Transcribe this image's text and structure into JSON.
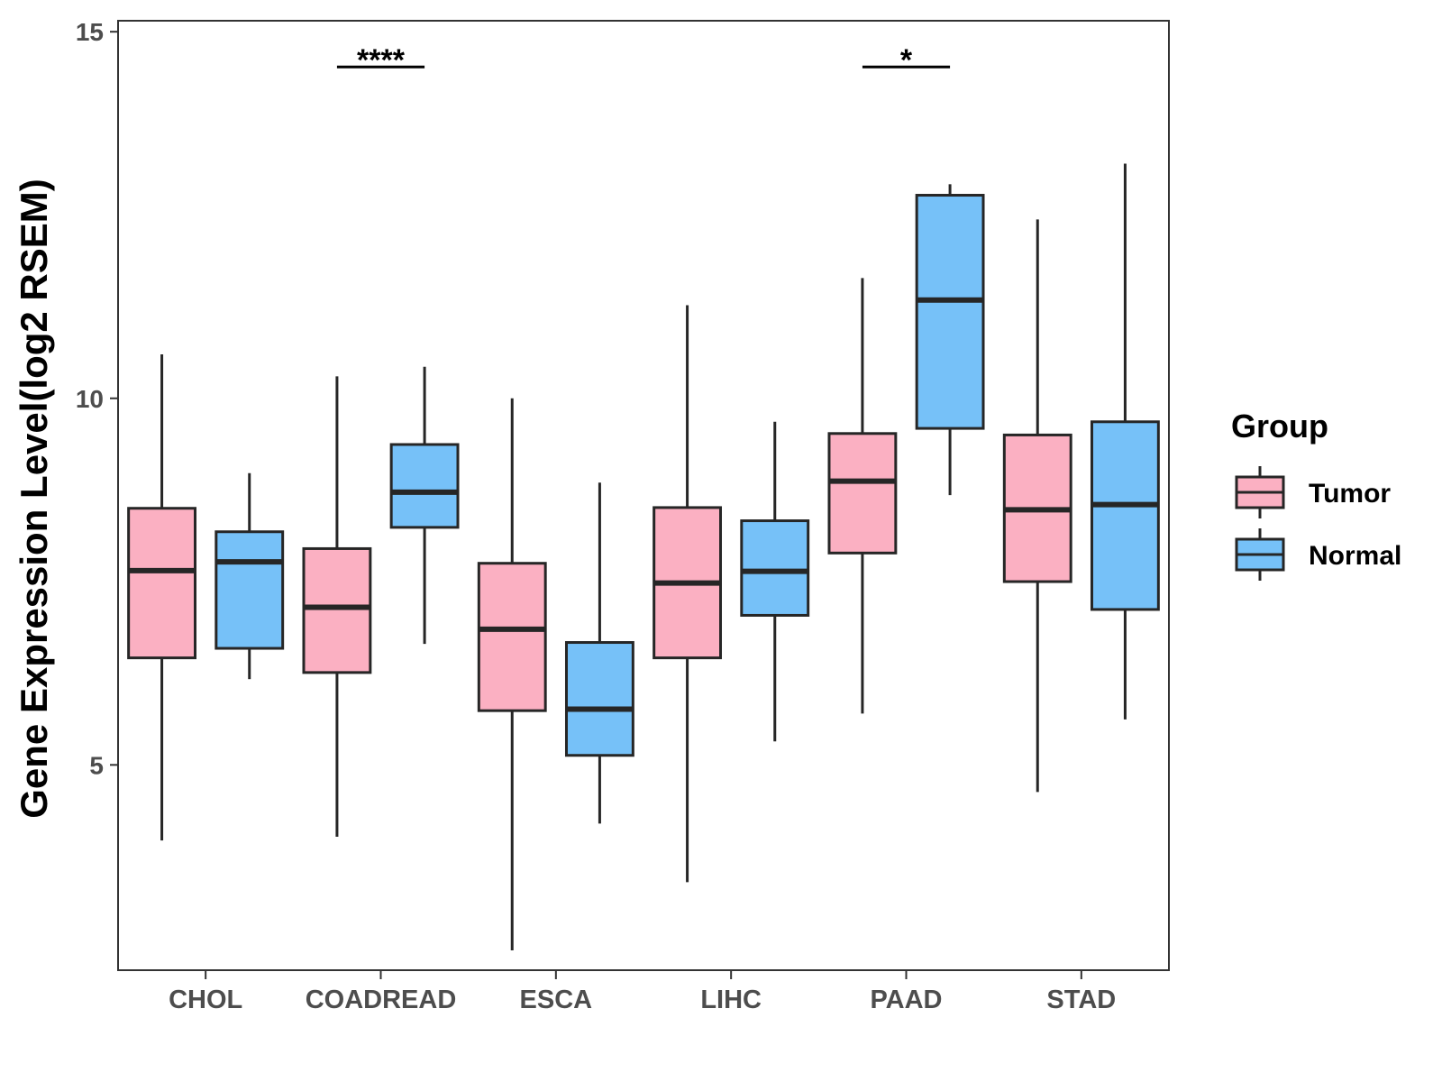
{
  "chart_data": {
    "type": "boxplot",
    "ylabel": "Gene Expression Level(log2 RSEM)",
    "xlabel": "",
    "ylim": [
      2.2,
      15.15
    ],
    "yticks": [
      5,
      10,
      15
    ],
    "categories": [
      "CHOL",
      "COADREAD",
      "ESCA",
      "LIHC",
      "PAAD",
      "STAD"
    ],
    "legend": {
      "title": "Group",
      "position": "right",
      "entries": [
        {
          "name": "Tumor",
          "color": "#FBB0C2"
        },
        {
          "name": "Normal",
          "color": "#76C1F8"
        }
      ]
    },
    "series": [
      {
        "name": "Tumor",
        "color": "#FBB0C2",
        "boxes": [
          {
            "category": "CHOL",
            "min": 3.97,
            "q1": 6.46,
            "median": 7.65,
            "q3": 8.5,
            "max": 10.6
          },
          {
            "category": "COADREAD",
            "min": 4.02,
            "q1": 6.26,
            "median": 7.15,
            "q3": 7.95,
            "max": 10.3
          },
          {
            "category": "ESCA",
            "min": 2.47,
            "q1": 5.74,
            "median": 6.85,
            "q3": 7.75,
            "max": 10.0
          },
          {
            "category": "LIHC",
            "min": 3.4,
            "q1": 6.46,
            "median": 7.48,
            "q3": 8.51,
            "max": 11.27
          },
          {
            "category": "PAAD",
            "min": 5.7,
            "q1": 7.89,
            "median": 8.87,
            "q3": 9.52,
            "max": 11.64
          },
          {
            "category": "STAD",
            "min": 4.63,
            "q1": 7.5,
            "median": 8.48,
            "q3": 9.5,
            "max": 12.44
          }
        ]
      },
      {
        "name": "Normal",
        "color": "#76C1F8",
        "boxes": [
          {
            "category": "CHOL",
            "min": 6.17,
            "q1": 6.59,
            "median": 7.77,
            "q3": 8.18,
            "max": 8.98
          },
          {
            "category": "COADREAD",
            "min": 6.65,
            "q1": 8.24,
            "median": 8.72,
            "q3": 9.37,
            "max": 10.43
          },
          {
            "category": "ESCA",
            "min": 4.2,
            "q1": 5.13,
            "median": 5.76,
            "q3": 6.67,
            "max": 8.85
          },
          {
            "category": "LIHC",
            "min": 5.32,
            "q1": 7.04,
            "median": 7.64,
            "q3": 8.33,
            "max": 9.68
          },
          {
            "category": "PAAD",
            "min": 8.68,
            "q1": 9.59,
            "median": 11.34,
            "q3": 12.77,
            "max": 12.92
          },
          {
            "category": "STAD",
            "min": 5.62,
            "q1": 7.12,
            "median": 8.55,
            "q3": 9.68,
            "max": 13.2
          }
        ]
      }
    ],
    "annotations": [
      {
        "category": "COADREAD",
        "label": "****",
        "y": 14.52
      },
      {
        "category": "PAAD",
        "label": "*",
        "y": 14.52
      }
    ]
  }
}
